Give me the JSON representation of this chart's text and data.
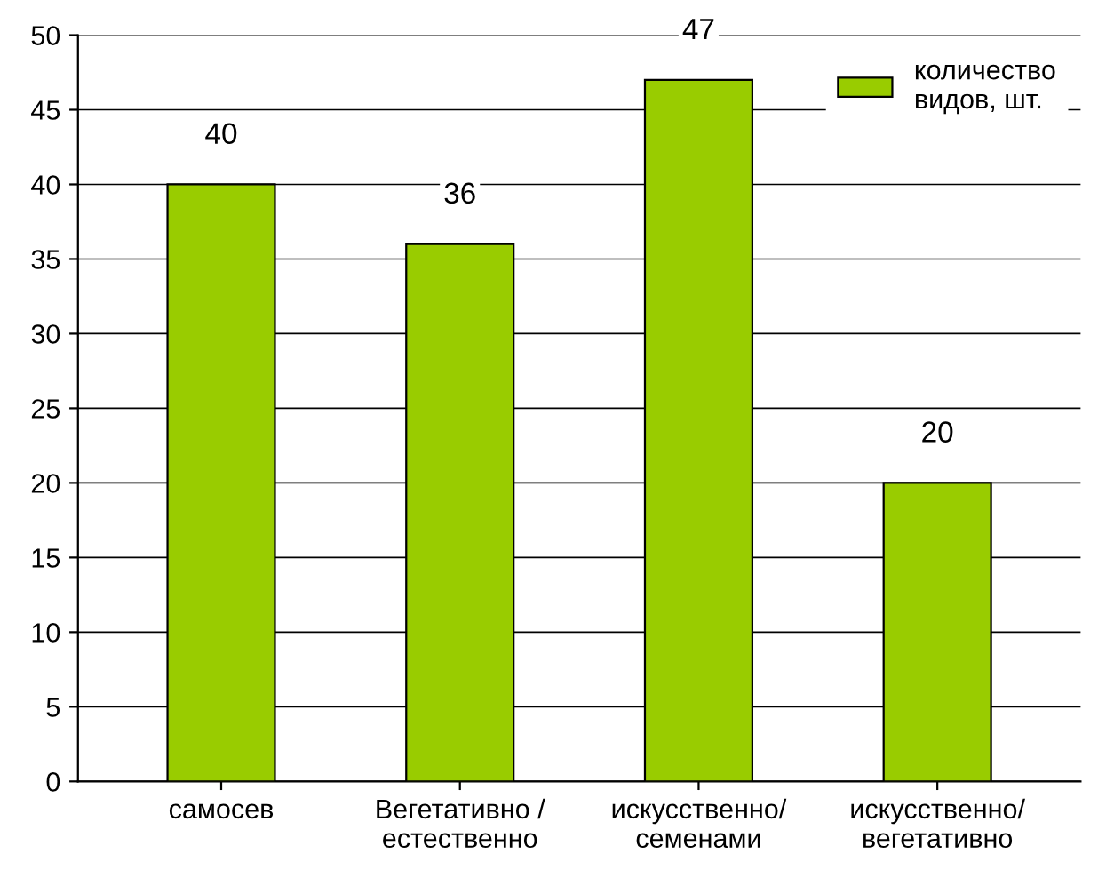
{
  "chart_data": {
    "type": "bar",
    "categories": [
      "самосев",
      "Вегетативно /\nестественно",
      "искусственно/\nсеменами",
      "искусственно/\nвегетативно"
    ],
    "series": [
      {
        "name": "количество\nвидов, шт.",
        "color": "#99cc00",
        "values": [
          40,
          36,
          47,
          20
        ]
      }
    ],
    "ylim": [
      0,
      50
    ],
    "yticks": [
      0,
      5,
      10,
      15,
      20,
      25,
      30,
      35,
      40,
      45,
      50
    ],
    "grid": "y",
    "legend": "top right",
    "data_labels": true
  }
}
